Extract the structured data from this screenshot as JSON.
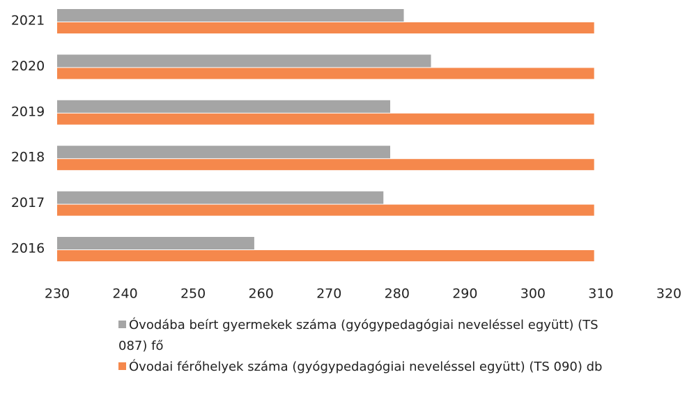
{
  "chart_data": {
    "type": "hbar",
    "categories": [
      "2016",
      "2017",
      "2018",
      "2019",
      "2020",
      "2021"
    ],
    "series": [
      {
        "name": "Óvodába beírt gyermekek száma (gyógypedagógiai neveléssel együtt) (TS 087) fő",
        "color": "#a5a5a5",
        "values": [
          259,
          278,
          279,
          279,
          285,
          281
        ]
      },
      {
        "name": "Óvodai férőhelyek száma (gyógypedagógiai neveléssel együtt) (TS 090) db",
        "color": "#f5884c",
        "values": [
          309,
          309,
          309,
          309,
          309,
          309
        ]
      }
    ],
    "xlim": [
      230,
      320
    ],
    "xticks": [
      230,
      240,
      250,
      260,
      270,
      280,
      290,
      300,
      310,
      320
    ],
    "legend": "bottom"
  }
}
